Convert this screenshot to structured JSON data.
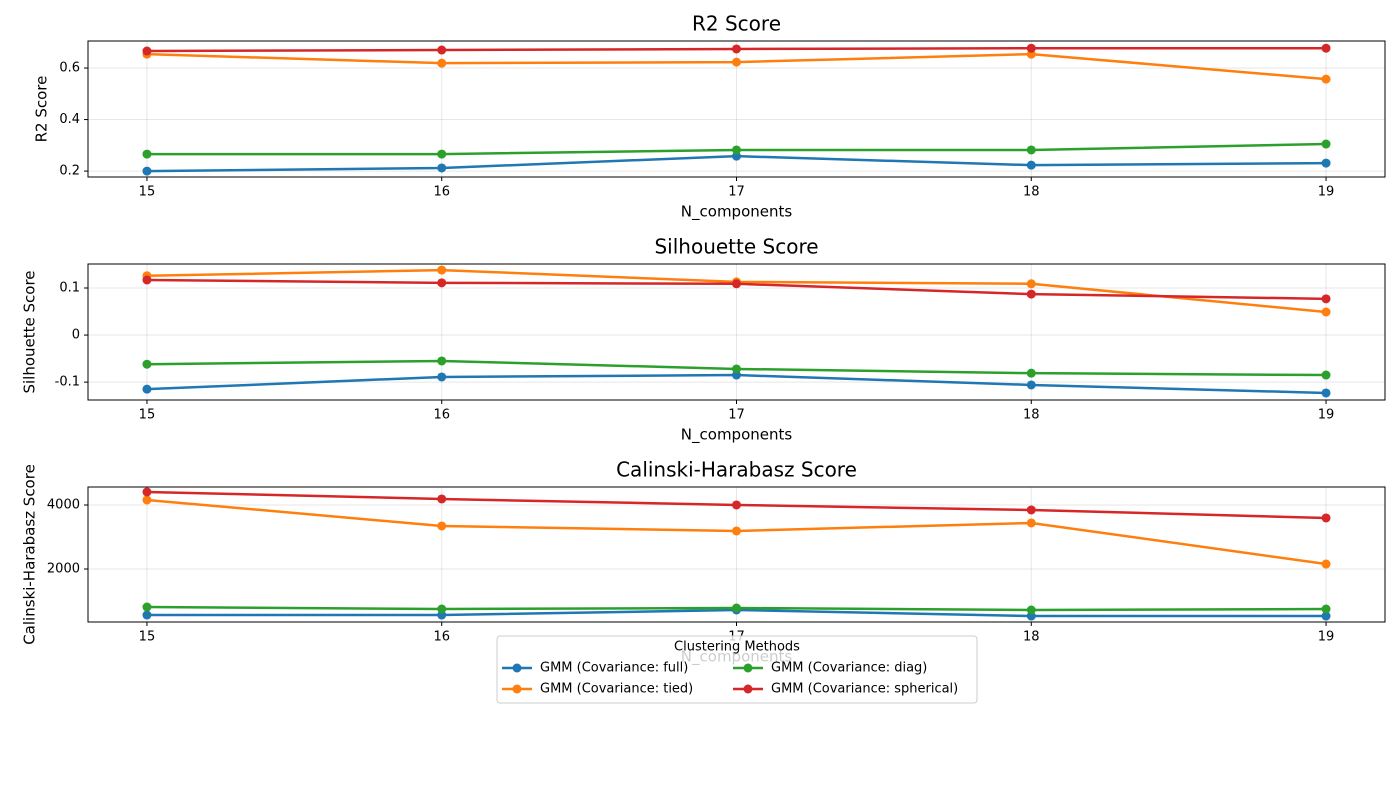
{
  "chart_data": [
    {
      "type": "line",
      "title": "R2 Score",
      "xlabel": "N_components",
      "ylabel": "R2 Score",
      "x": [
        15,
        16,
        17,
        18,
        19
      ],
      "xlim": [
        14.8,
        19.2
      ],
      "xticks": [
        15,
        16,
        17,
        18,
        19
      ],
      "ylim": [
        0.177,
        0.705
      ],
      "yticks": [
        0.2,
        0.4,
        0.6
      ],
      "grid": true,
      "series": [
        {
          "name": "GMM (Covariance: full)",
          "color": "#1f77b4",
          "values": [
            0.2,
            0.212,
            0.258,
            0.223,
            0.231
          ]
        },
        {
          "name": "GMM (Covariance: tied)",
          "color": "#ff7f0e",
          "values": [
            0.654,
            0.619,
            0.623,
            0.654,
            0.557
          ]
        },
        {
          "name": "GMM (Covariance: diag)",
          "color": "#2ca02c",
          "values": [
            0.266,
            0.266,
            0.282,
            0.282,
            0.305
          ]
        },
        {
          "name": "GMM (Covariance: spherical)",
          "color": "#d62728",
          "values": [
            0.666,
            0.67,
            0.674,
            0.677,
            0.677
          ]
        }
      ]
    },
    {
      "type": "line",
      "title": "Silhouette Score",
      "xlabel": "N_components",
      "ylabel": "Silhouette Score",
      "x": [
        15,
        16,
        17,
        18,
        19
      ],
      "xlim": [
        14.8,
        19.2
      ],
      "xticks": [
        15,
        16,
        17,
        18,
        19
      ],
      "ylim": [
        -0.138,
        0.151
      ],
      "yticks": [
        -0.1,
        0.0,
        0.1
      ],
      "grid": true,
      "series": [
        {
          "name": "GMM (Covariance: full)",
          "color": "#1f77b4",
          "values": [
            -0.115,
            -0.089,
            -0.085,
            -0.106,
            -0.123
          ]
        },
        {
          "name": "GMM (Covariance: tied)",
          "color": "#ff7f0e",
          "values": [
            0.126,
            0.138,
            0.113,
            0.109,
            0.049
          ]
        },
        {
          "name": "GMM (Covariance: diag)",
          "color": "#2ca02c",
          "values": [
            -0.062,
            -0.055,
            -0.072,
            -0.081,
            -0.085
          ]
        },
        {
          "name": "GMM (Covariance: spherical)",
          "color": "#d62728",
          "values": [
            0.117,
            0.111,
            0.109,
            0.087,
            0.077
          ]
        }
      ]
    },
    {
      "type": "line",
      "title": "Calinski-Harabasz Score",
      "xlabel": "N_components",
      "ylabel": "Calinski-Harabasz Score",
      "x": [
        15,
        16,
        17,
        18,
        19
      ],
      "xlim": [
        14.8,
        19.2
      ],
      "xticks": [
        15,
        16,
        17,
        18,
        19
      ],
      "ylim": [
        344,
        4562
      ],
      "yticks": [
        2000,
        4000
      ],
      "grid": true,
      "legend_title": "Clustering Methods",
      "legend": "lower center",
      "series": [
        {
          "name": "GMM (Covariance: full)",
          "color": "#1f77b4",
          "values": [
            562,
            562,
            719,
            531,
            531
          ]
        },
        {
          "name": "GMM (Covariance: tied)",
          "color": "#ff7f0e",
          "values": [
            4156,
            3344,
            3188,
            3438,
            2156
          ]
        },
        {
          "name": "GMM (Covariance: diag)",
          "color": "#2ca02c",
          "values": [
            812,
            750,
            781,
            719,
            750
          ]
        },
        {
          "name": "GMM (Covariance: spherical)",
          "color": "#d62728",
          "values": [
            4406,
            4188,
            4000,
            3844,
            3594
          ]
        }
      ]
    }
  ]
}
